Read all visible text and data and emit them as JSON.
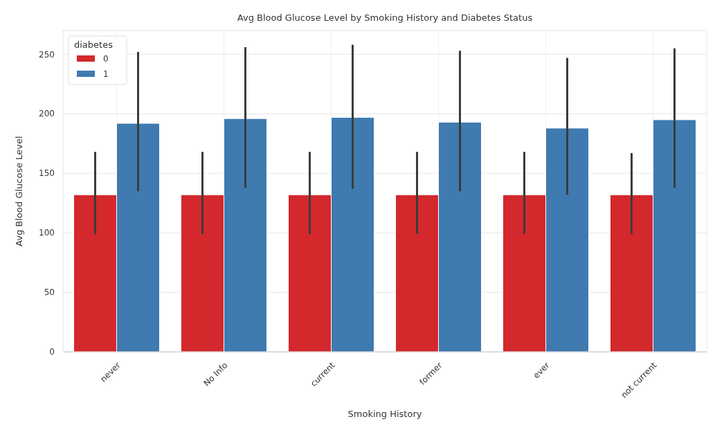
{
  "chart_data": {
    "type": "bar",
    "title": "Avg Blood Glucose Level by Smoking History and Diabetes Status",
    "xlabel": "Smoking History",
    "ylabel": "Avg Blood Glucose Level",
    "legend_title": "diabetes",
    "categories": [
      "never",
      "No Info",
      "current",
      "former",
      "ever",
      "not current"
    ],
    "series": [
      {
        "name": "0",
        "color": "#d3282c",
        "values": [
          132,
          132,
          132,
          132,
          132,
          132
        ],
        "errors": [
          [
            99,
            168
          ],
          [
            99,
            168
          ],
          [
            99,
            168
          ],
          [
            99,
            168
          ],
          [
            99,
            168
          ],
          [
            99,
            167
          ]
        ]
      },
      {
        "name": "1",
        "color": "#3f7ab0",
        "values": [
          192,
          196,
          197,
          193,
          188,
          195
        ],
        "errors": [
          [
            135,
            252
          ],
          [
            138,
            256
          ],
          [
            137,
            258
          ],
          [
            135,
            253
          ],
          [
            132,
            247
          ],
          [
            138,
            255
          ]
        ]
      }
    ],
    "ylim": [
      0,
      270
    ],
    "yticks": [
      0,
      50,
      100,
      150,
      200,
      250
    ],
    "grid": true,
    "legend": "top left"
  }
}
